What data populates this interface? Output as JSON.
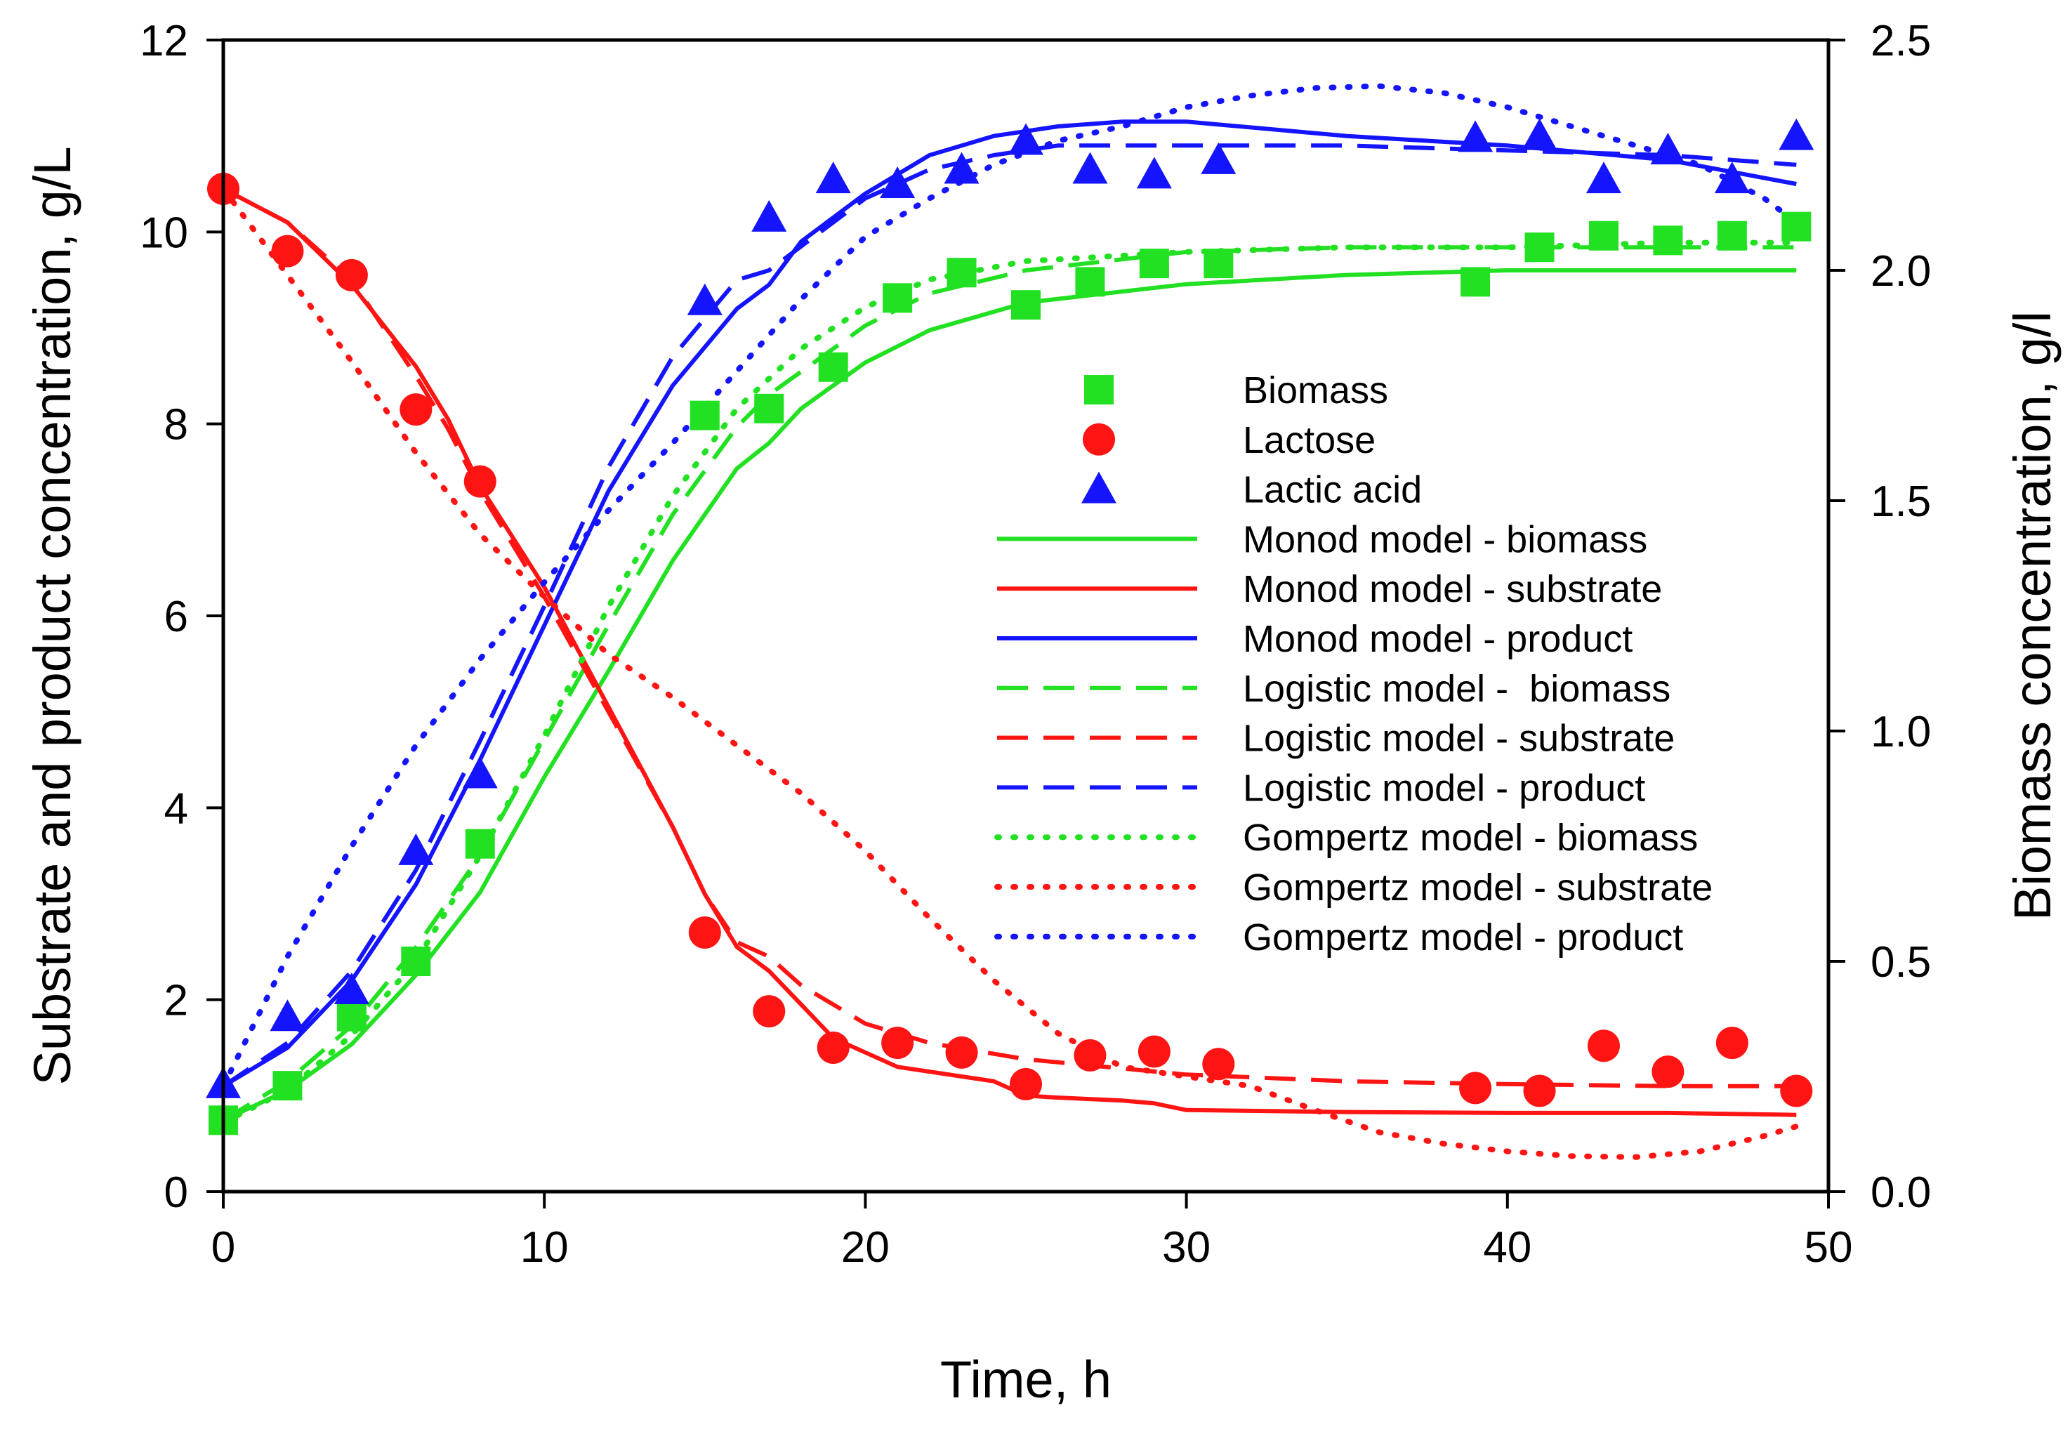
{
  "chart_data": {
    "type": "scatter",
    "xlabel": "Time, h",
    "ylabel_left": "Substrate and product concentration, g/L",
    "ylabel_right": "Biomass concentration, g/l",
    "xlim": [
      0,
      50
    ],
    "ylim_left": [
      0,
      12
    ],
    "ylim_right": [
      0,
      2.5
    ],
    "x_ticks": [
      "0",
      "10",
      "20",
      "30",
      "40",
      "50"
    ],
    "y_left_ticks": [
      "0",
      "2",
      "4",
      "6",
      "8",
      "10",
      "12"
    ],
    "y_right_ticks": [
      "0.0",
      "0.5",
      "1.0",
      "1.5",
      "2.0",
      "2.5"
    ],
    "grid": false,
    "legend_position": "center-right",
    "colors": {
      "green": "#22e022",
      "red": "#ff1414",
      "blue": "#1414ff"
    },
    "series": [
      {
        "name": "Biomass",
        "kind": "markers",
        "marker": "square",
        "color": "#22e022",
        "axis": "right",
        "x": [
          0,
          2,
          4,
          6,
          8,
          15,
          17,
          19,
          21,
          23,
          25,
          27,
          29,
          31,
          39,
          41,
          43,
          45,
          47,
          49
        ],
        "y": [
          0.155,
          0.23,
          0.38,
          0.5,
          0.755,
          1.685,
          1.7,
          1.79,
          1.94,
          1.995,
          1.925,
          1.975,
          2.015,
          2.015,
          1.975,
          2.05,
          2.075,
          2.065,
          2.075,
          2.095
        ]
      },
      {
        "name": "Lactose",
        "kind": "markers",
        "marker": "circle",
        "color": "#ff1414",
        "axis": "left",
        "x": [
          0,
          2,
          4,
          6,
          8,
          15,
          17,
          19,
          21,
          23,
          25,
          27,
          29,
          31,
          39,
          41,
          43,
          45,
          47,
          49
        ],
        "y": [
          10.45,
          9.8,
          9.55,
          8.15,
          7.4,
          2.7,
          1.88,
          1.5,
          1.55,
          1.45,
          1.12,
          1.42,
          1.46,
          1.33,
          1.08,
          1.05,
          1.52,
          1.25,
          1.55,
          1.05
        ]
      },
      {
        "name": "Lactic acid",
        "kind": "markers",
        "marker": "triangle",
        "color": "#1414ff",
        "axis": "left",
        "x": [
          0,
          2,
          4,
          6,
          8,
          15,
          17,
          19,
          21,
          23,
          25,
          27,
          29,
          31,
          39,
          41,
          43,
          45,
          47,
          49
        ],
        "y": [
          1.12,
          1.82,
          2.1,
          3.55,
          4.35,
          9.28,
          10.15,
          10.55,
          10.5,
          10.65,
          10.95,
          10.65,
          10.6,
          10.75,
          10.98,
          11.0,
          10.55,
          10.85,
          10.55,
          11.0
        ]
      },
      {
        "name": "Monod model - biomass",
        "kind": "line",
        "dash": "solid",
        "color": "#22e022",
        "axis": "right",
        "x": [
          0,
          2,
          4,
          6,
          8,
          10,
          12,
          14,
          16,
          17,
          18,
          20,
          22,
          25,
          30,
          35,
          40,
          45,
          49
        ],
        "y": [
          0.155,
          0.22,
          0.32,
          0.47,
          0.65,
          0.9,
          1.13,
          1.37,
          1.57,
          1.625,
          1.7,
          1.8,
          1.87,
          1.93,
          1.97,
          1.99,
          2.0,
          2.0,
          2.0
        ]
      },
      {
        "name": "Monod model - substrate",
        "kind": "line",
        "dash": "solid",
        "color": "#ff1414",
        "axis": "left",
        "x": [
          0,
          2,
          4,
          6,
          7,
          8,
          10,
          12,
          14,
          15,
          16,
          17,
          18,
          19,
          21,
          24,
          25,
          26,
          28,
          29,
          30,
          35,
          40,
          45,
          49
        ],
        "y": [
          10.45,
          10.1,
          9.45,
          8.6,
          8.05,
          7.35,
          6.3,
          5.05,
          3.8,
          3.1,
          2.55,
          2.3,
          1.95,
          1.6,
          1.3,
          1.15,
          1.0,
          0.98,
          0.95,
          0.92,
          0.85,
          0.83,
          0.82,
          0.82,
          0.8
        ]
      },
      {
        "name": "Monod model - product",
        "kind": "line",
        "dash": "solid",
        "color": "#1414ff",
        "axis": "left",
        "x": [
          0,
          2,
          4,
          6,
          8,
          10,
          12,
          14,
          16,
          17,
          18,
          20,
          22,
          24,
          26,
          28,
          30,
          35,
          40,
          45,
          49
        ],
        "y": [
          1.1,
          1.5,
          2.2,
          3.2,
          4.5,
          5.9,
          7.3,
          8.4,
          9.2,
          9.45,
          9.9,
          10.4,
          10.8,
          11.0,
          11.1,
          11.15,
          11.15,
          11.0,
          10.9,
          10.75,
          10.5
        ]
      },
      {
        "name": "Logistic model -  biomass",
        "kind": "line",
        "dash": "dash",
        "color": "#22e022",
        "axis": "right",
        "x": [
          0,
          2,
          4,
          6,
          8,
          10,
          12,
          14,
          16,
          17,
          18,
          20,
          22,
          25,
          30,
          35,
          40,
          45,
          49
        ],
        "y": [
          0.155,
          0.24,
          0.36,
          0.53,
          0.73,
          0.98,
          1.23,
          1.47,
          1.66,
          1.73,
          1.78,
          1.88,
          1.95,
          2.0,
          2.04,
          2.05,
          2.05,
          2.05,
          2.05
        ]
      },
      {
        "name": "Logistic model - substrate",
        "kind": "line",
        "dash": "dash",
        "color": "#ff1414",
        "axis": "left",
        "x": [
          0,
          2,
          4,
          6,
          7,
          8,
          10,
          12,
          14,
          15,
          16,
          17,
          18,
          20,
          22,
          25,
          30,
          35,
          40,
          45,
          49
        ],
        "y": [
          10.45,
          10.1,
          9.5,
          8.5,
          7.95,
          7.3,
          6.2,
          5.0,
          3.8,
          3.1,
          2.6,
          2.45,
          2.15,
          1.75,
          1.55,
          1.38,
          1.22,
          1.15,
          1.12,
          1.1,
          1.1
        ]
      },
      {
        "name": "Logistic model - product",
        "kind": "line",
        "dash": "dash",
        "color": "#1414ff",
        "axis": "left",
        "x": [
          0,
          2,
          4,
          6,
          8,
          10,
          12,
          14,
          16,
          17,
          18,
          20,
          22,
          24,
          26,
          30,
          35,
          40,
          45,
          49
        ],
        "y": [
          1.1,
          1.55,
          2.3,
          3.35,
          4.7,
          6.1,
          7.55,
          8.7,
          9.5,
          9.6,
          9.85,
          10.35,
          10.65,
          10.8,
          10.9,
          10.9,
          10.9,
          10.85,
          10.8,
          10.7
        ]
      },
      {
        "name": "Gompertz model - biomass",
        "kind": "line",
        "dash": "dot",
        "color": "#22e022",
        "axis": "right",
        "x": [
          0,
          2,
          4,
          6,
          8,
          10,
          12,
          14,
          16,
          18,
          20,
          22,
          25,
          30,
          35,
          40,
          45,
          49
        ],
        "y": [
          0.15,
          0.22,
          0.34,
          0.5,
          0.73,
          0.99,
          1.27,
          1.51,
          1.7,
          1.83,
          1.92,
          1.98,
          2.02,
          2.04,
          2.05,
          2.05,
          2.06,
          2.06
        ]
      },
      {
        "name": "Gompertz model - substrate",
        "kind": "line",
        "dash": "dot",
        "color": "#ff1414",
        "axis": "left",
        "x": [
          0,
          2,
          4,
          6,
          8,
          10,
          12,
          14,
          16,
          18,
          20,
          22,
          24,
          26,
          28,
          30,
          32,
          34,
          36,
          38,
          40,
          42,
          44,
          46,
          48,
          49
        ],
        "y": [
          10.45,
          9.55,
          8.65,
          7.7,
          6.85,
          6.2,
          5.6,
          5.15,
          4.65,
          4.15,
          3.55,
          2.85,
          2.2,
          1.65,
          1.3,
          1.2,
          1.1,
          0.85,
          0.62,
          0.5,
          0.42,
          0.37,
          0.36,
          0.42,
          0.58,
          0.68
        ]
      },
      {
        "name": "Gompertz model - product",
        "kind": "line",
        "dash": "dot",
        "color": "#1414ff",
        "axis": "left",
        "x": [
          0,
          2,
          4,
          6,
          8,
          10,
          12,
          14,
          16,
          18,
          20,
          22,
          24,
          26,
          28,
          30,
          32,
          34,
          36,
          38,
          40,
          42,
          44,
          46,
          48,
          49
        ],
        "y": [
          1.1,
          2.45,
          3.6,
          4.65,
          5.55,
          6.35,
          7.1,
          7.8,
          8.55,
          9.3,
          9.95,
          10.35,
          10.7,
          10.95,
          11.1,
          11.3,
          11.42,
          11.5,
          11.52,
          11.45,
          11.3,
          11.1,
          10.9,
          10.7,
          10.35,
          10.1
        ]
      }
    ]
  }
}
